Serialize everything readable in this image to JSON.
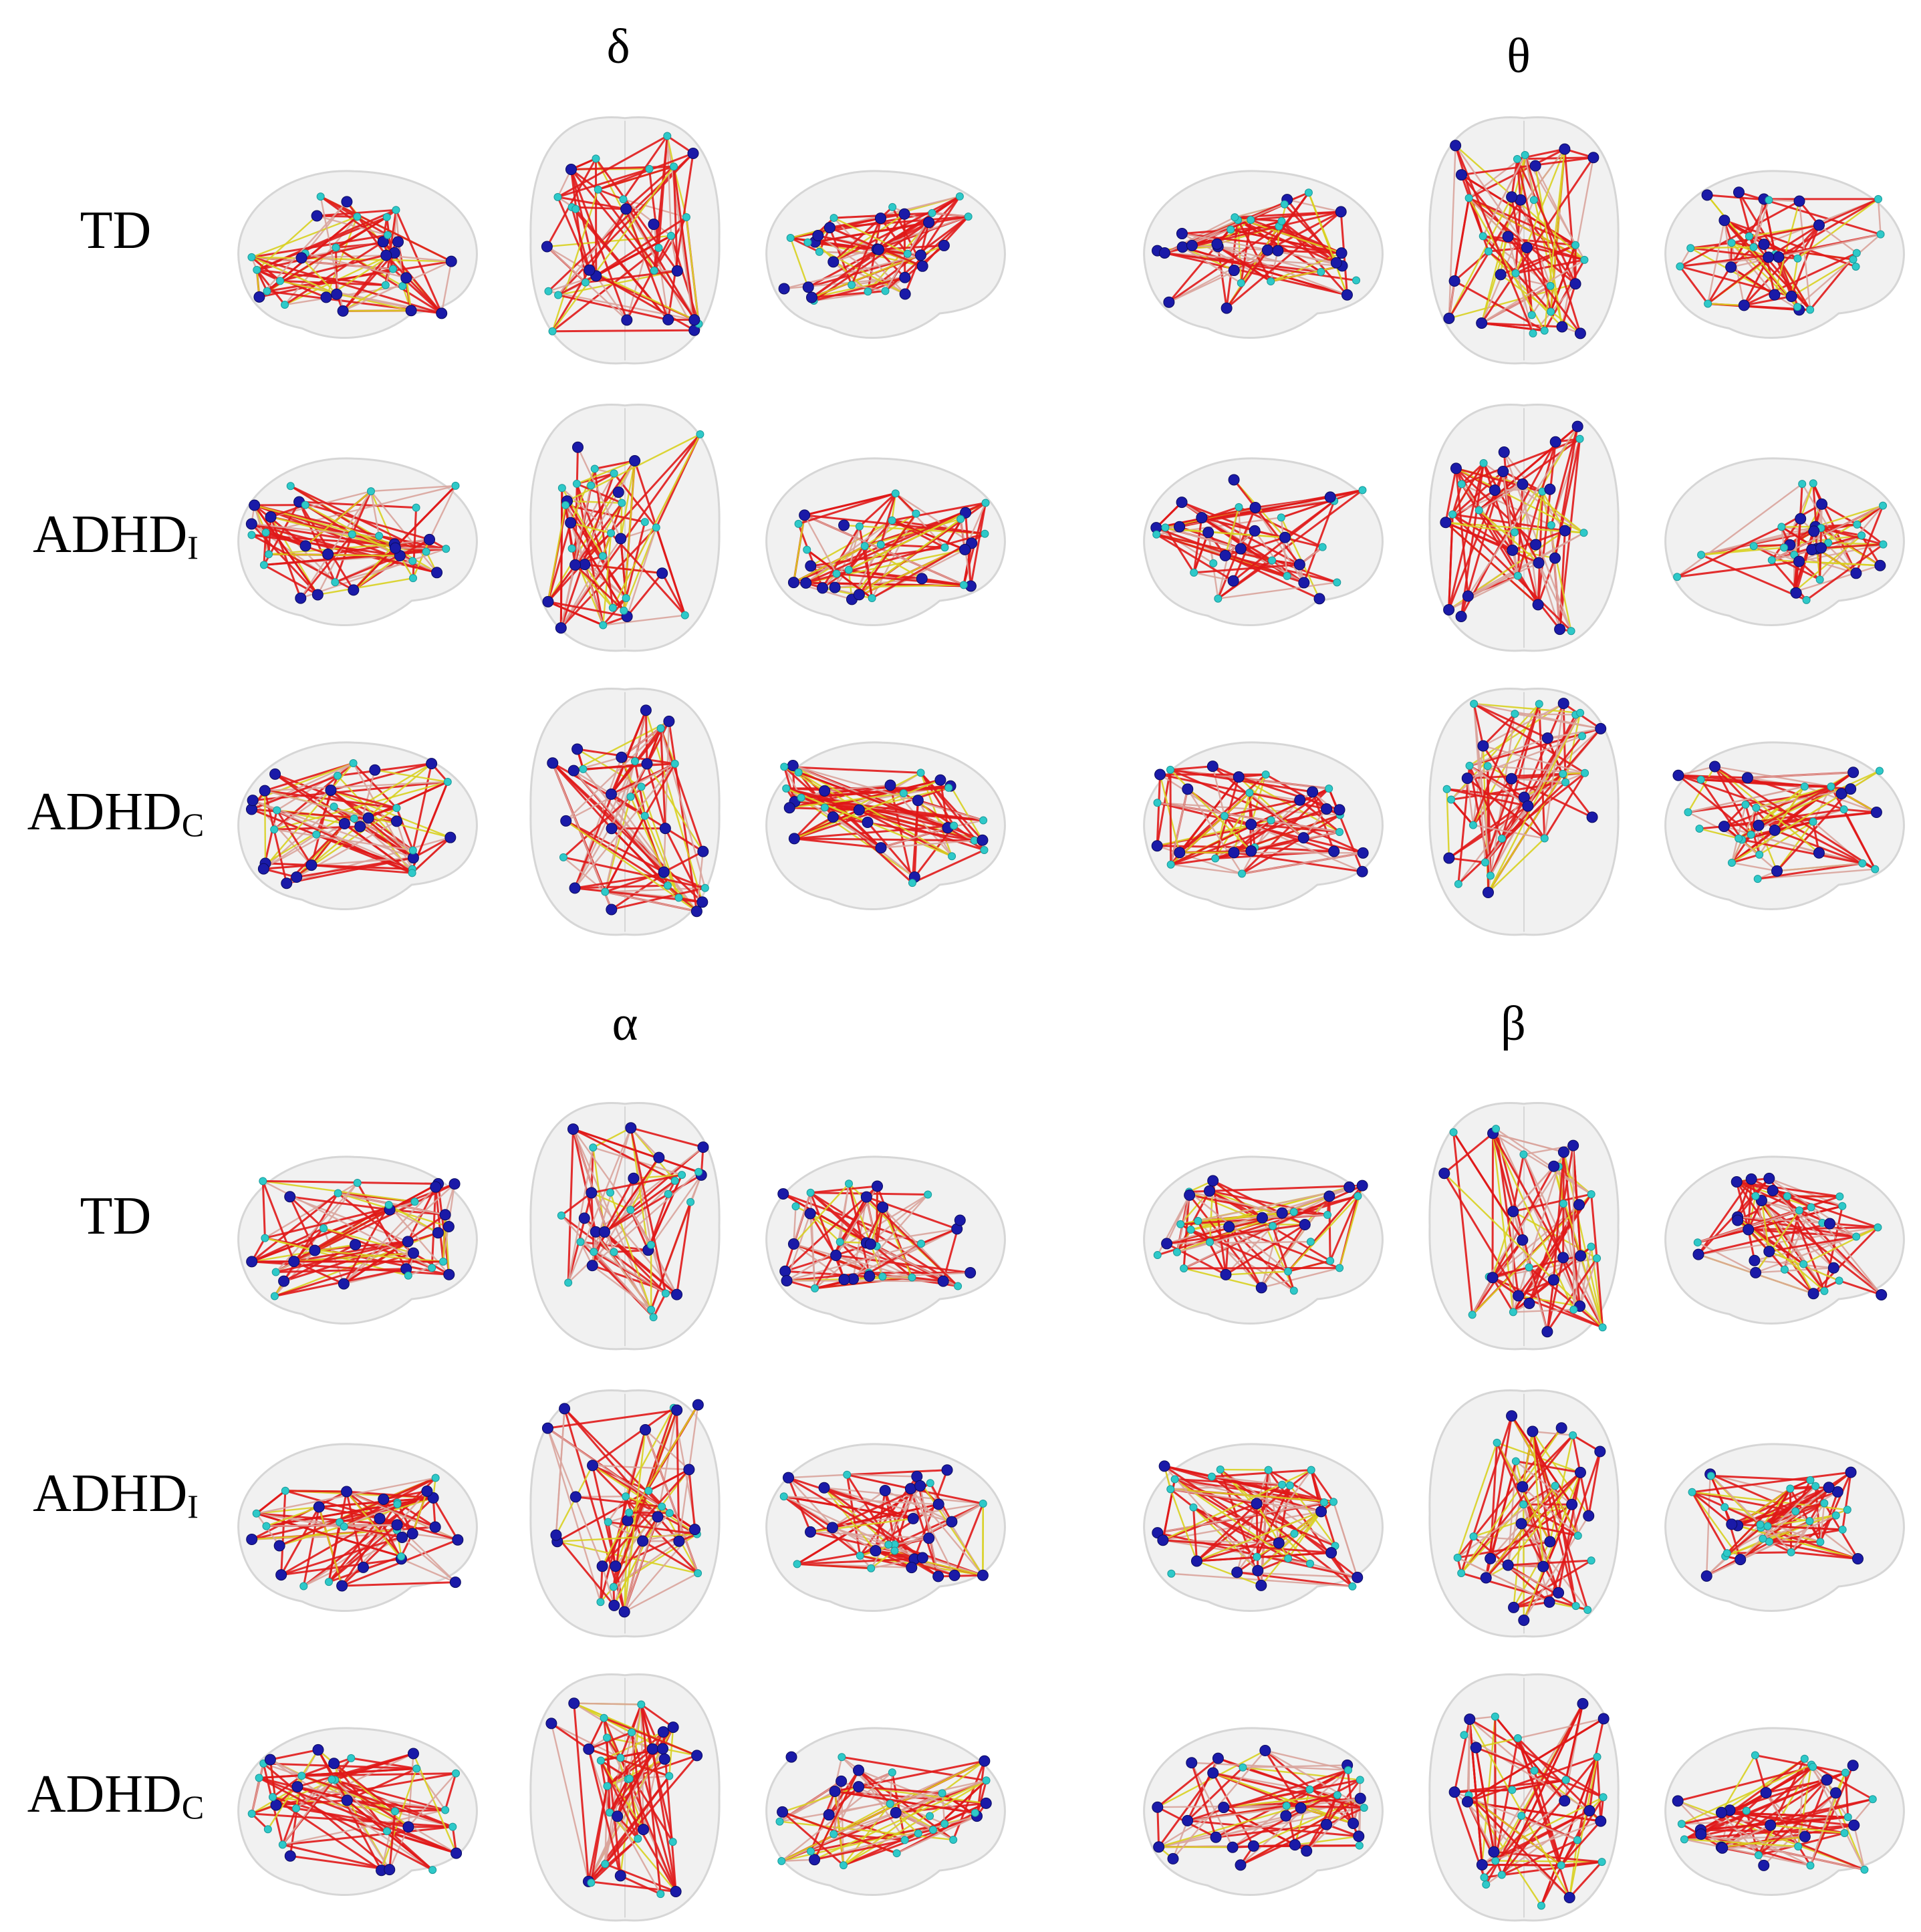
{
  "figure": {
    "bands": [
      {
        "id": "delta",
        "symbol": "δ"
      },
      {
        "id": "theta",
        "symbol": "θ"
      },
      {
        "id": "alpha",
        "symbol": "α"
      },
      {
        "id": "beta",
        "symbol": "β"
      }
    ],
    "groups": [
      {
        "id": "td",
        "label": "TD",
        "sub": ""
      },
      {
        "id": "adhd-i",
        "label": "ADHD",
        "sub": "I"
      },
      {
        "id": "adhd-c",
        "label": "ADHD",
        "sub": "C"
      }
    ],
    "views": [
      "sagittal-left",
      "axial",
      "sagittal-right"
    ]
  },
  "colors": {
    "brain_fill": "#ececec",
    "brain_stroke": "#d6d6d6",
    "hub_node": "#1a1aa8",
    "node": "#2ec9c9",
    "strong_edge": "#e01818",
    "medium_edge": "#d9a49c",
    "weak_edge": "#d8d020"
  }
}
